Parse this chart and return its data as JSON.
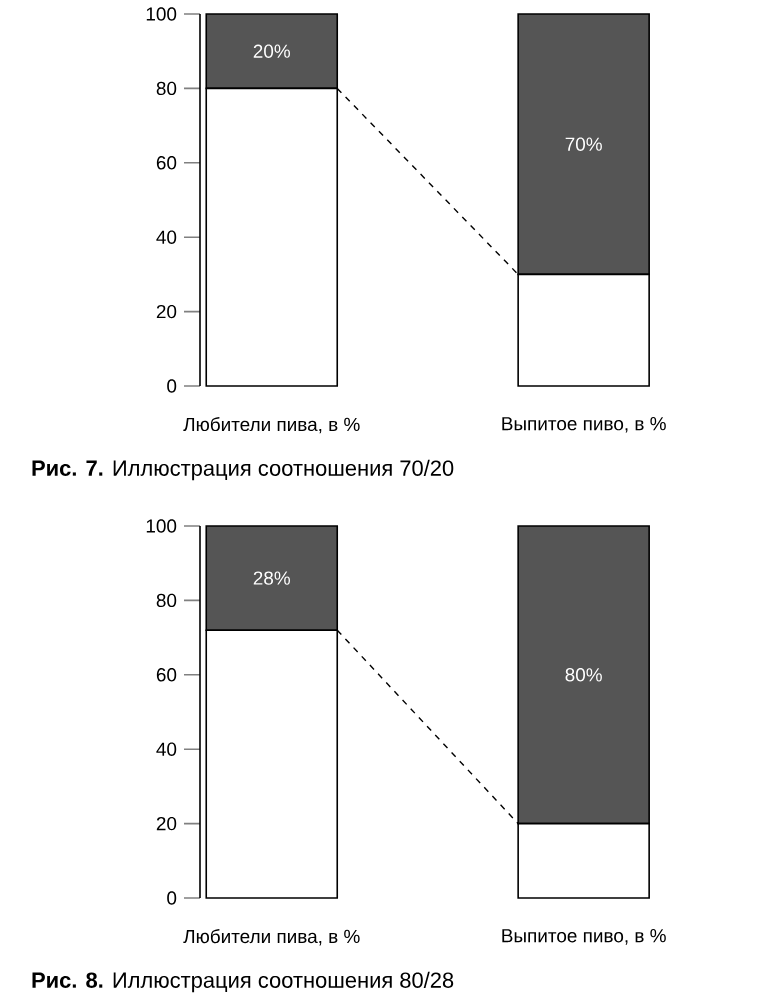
{
  "chart_data": [
    {
      "type": "bar",
      "title": "**Рис. 7.** Иллюстрация соотношения 70/20",
      "categories": [
        "Любители пива, в %",
        "Выпитое пиво, в %"
      ],
      "stacked": true,
      "ylim": [
        0,
        100
      ],
      "yticks": [
        0,
        20,
        40,
        60,
        80,
        100
      ],
      "series": [
        {
          "color": "#ffffff",
          "values": [
            80,
            30
          ]
        },
        {
          "color": "#555555",
          "values": [
            20,
            70
          ],
          "value_labels": [
            "20%",
            "70%"
          ]
        }
      ]
    },
    {
      "type": "bar",
      "title": "**Рис. 8.** Иллюстрация соотношения 80/28",
      "categories": [
        "Любители пива, в %",
        "Выпитое пиво, в %"
      ],
      "stacked": true,
      "ylim": [
        0,
        100
      ],
      "yticks": [
        0,
        20,
        40,
        60,
        80,
        100
      ],
      "series": [
        {
          "color": "#ffffff",
          "values": [
            72,
            20
          ]
        },
        {
          "color": "#555555",
          "values": [
            28,
            80
          ],
          "value_labels": [
            "28%",
            "80%"
          ]
        }
      ]
    }
  ]
}
